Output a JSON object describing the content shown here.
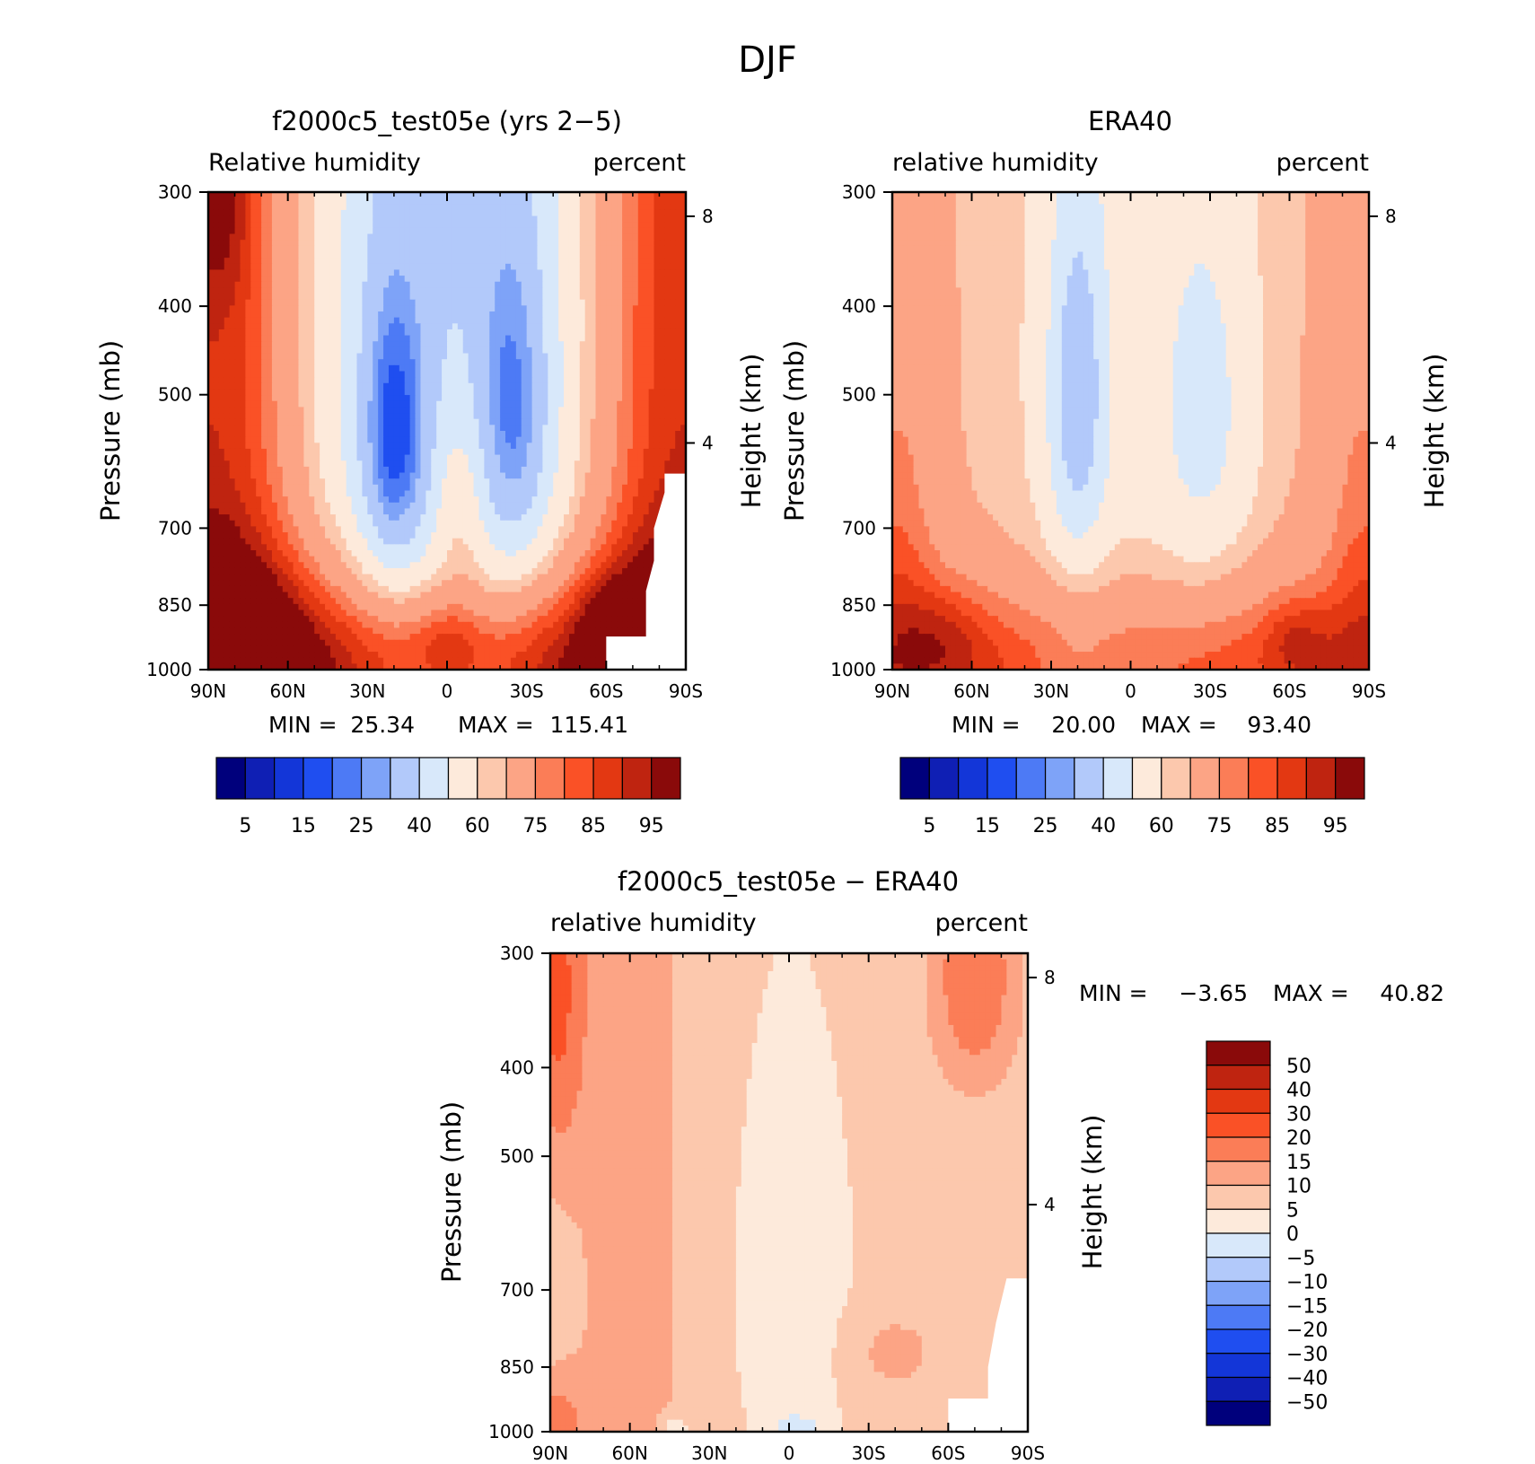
{
  "figure": {
    "title": "DJF"
  },
  "colors": {
    "rh_palette": [
      "#00007c",
      "#0f1fb4",
      "#1336d8",
      "#1f4ef0",
      "#4d7af5",
      "#7ea3f8",
      "#b2c9fa",
      "#d8e8fa",
      "#fdeadb",
      "#fcc8ad",
      "#fca485",
      "#fb7d57",
      "#fa5126",
      "#e33812",
      "#bf2410",
      "#8a0a0a"
    ],
    "diff_palette": [
      "#00007c",
      "#0f1fb4",
      "#1336d8",
      "#1f4ef0",
      "#4d7af5",
      "#7ea3f8",
      "#b2c9fa",
      "#d8e8fa",
      "#fdeadb",
      "#fcc8ad",
      "#fca485",
      "#fb7d57",
      "#fa5126",
      "#e33812",
      "#bf2410",
      "#8a0a0a"
    ]
  },
  "chart_data": [
    {
      "type": "heatmap",
      "title": "f2000c5_test05e (yrs 2−5)",
      "left_label": "Relative humidity",
      "right_label": "percent",
      "ylabel": "Pressure (mb)",
      "y2label": "Height (km)",
      "x_ticks": [
        "90N",
        "60N",
        "30N",
        "0",
        "30S",
        "60S",
        "90S"
      ],
      "y_ticks": [
        "300",
        "400",
        "500",
        "700",
        "850",
        "1000"
      ],
      "y2_ticks": [
        "8",
        "4"
      ],
      "min_max": {
        "min_label": "MIN =",
        "min": "25.34",
        "max_label": "MAX =",
        "max": "115.41"
      },
      "colorbar_labels": [
        "5",
        "15",
        "25",
        "40",
        "60",
        "75",
        "85",
        "95"
      ],
      "x_range_lat": [
        90,
        -90
      ],
      "y_range_mb": [
        1000,
        300
      ],
      "field": "rh_model"
    },
    {
      "type": "heatmap",
      "title": "ERA40",
      "left_label": "relative humidity",
      "right_label": "percent",
      "ylabel": "Pressure (mb)",
      "y2label": "Height (km)",
      "x_ticks": [
        "90N",
        "60N",
        "30N",
        "0",
        "30S",
        "60S",
        "90S"
      ],
      "y_ticks": [
        "300",
        "400",
        "500",
        "700",
        "850",
        "1000"
      ],
      "y2_ticks": [
        "8",
        "4"
      ],
      "min_max": {
        "min_label": "MIN =",
        "min": "20.00",
        "max_label": "MAX =",
        "max": "93.40"
      },
      "colorbar_labels": [
        "5",
        "15",
        "25",
        "40",
        "60",
        "75",
        "85",
        "95"
      ],
      "x_range_lat": [
        90,
        -90
      ],
      "y_range_mb": [
        1000,
        300
      ],
      "field": "rh_era"
    },
    {
      "type": "heatmap",
      "title": "f2000c5_test05e − ERA40",
      "left_label": "relative humidity",
      "right_label": "percent",
      "ylabel": "Pressure (mb)",
      "y2label": "Height (km)",
      "x_ticks": [
        "90N",
        "60N",
        "30N",
        "0",
        "30S",
        "60S",
        "90S"
      ],
      "y_ticks": [
        "300",
        "400",
        "500",
        "700",
        "850",
        "1000"
      ],
      "y2_ticks": [
        "8",
        "4"
      ],
      "min_max": {
        "min_label": "MIN =",
        "min": "−3.65",
        "max_label": "MAX =",
        "max": "40.82"
      },
      "colorbar_labels": [
        "50",
        "40",
        "30",
        "20",
        "15",
        "10",
        "5",
        "0",
        "−5",
        "−10",
        "−15",
        "−20",
        "−30",
        "−40",
        "−50"
      ],
      "x_range_lat": [
        90,
        -90
      ],
      "y_range_mb": [
        1000,
        300
      ],
      "field": "rh_diff"
    }
  ]
}
